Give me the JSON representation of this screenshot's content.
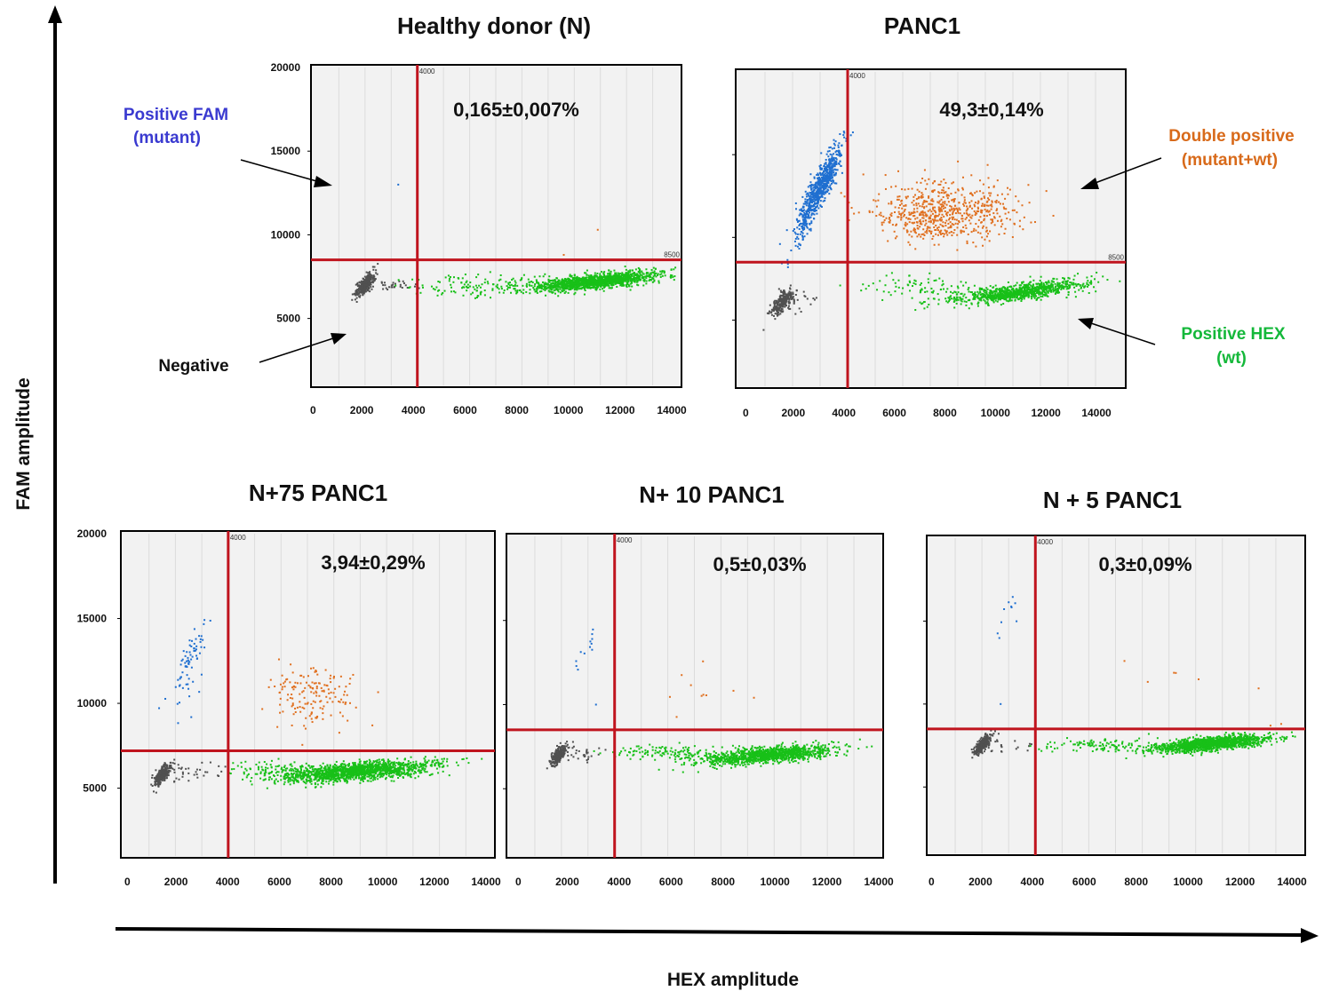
{
  "figure": {
    "x_axis_label": "HEX amplitude",
    "y_axis_label": "FAM amplitude"
  },
  "annotations": {
    "positive_fam": [
      "Positive FAM",
      "(mutant)"
    ],
    "negative": "Negative",
    "double_positive": [
      "Double positive",
      "(mutant+wt)"
    ],
    "positive_hex": [
      "Positive HEX",
      "(wt)"
    ]
  },
  "colors": {
    "mutant_fam": "#1f6fd0",
    "double_positive": "#e07020",
    "wt_hex": "#18c018",
    "negative": "#505050",
    "threshold": "#c0141e",
    "label_fam": "#3a3ad0",
    "label_double": "#d86a1a",
    "label_hex": "#14b83a"
  },
  "chart_data": [
    {
      "type": "scatter",
      "title": "Healthy donor (N)",
      "percent": "0,165±0,007%",
      "xlabel": "HEX amplitude",
      "ylabel": "FAM amplitude",
      "xlim": [
        0,
        14000
      ],
      "ylim": [
        1000,
        20000
      ],
      "x_ticks": [
        "0",
        "2000",
        "4000",
        "6000",
        "8000",
        "10000",
        "12000",
        "14000"
      ],
      "y_ticks": [
        "5000",
        "10000",
        "15000",
        "20000"
      ],
      "thresholds": {
        "x": 4000,
        "y": 8500,
        "x_text": "4000",
        "y_text": "8500"
      },
      "clusters": [
        {
          "name": "negative",
          "n": 300,
          "cx": 2000,
          "cy": 7000,
          "sx": 180,
          "sy": 350,
          "corr": 0.7
        },
        {
          "name": "negative",
          "n": 30,
          "cx": 3200,
          "cy": 7000,
          "sx": 550,
          "sy": 180,
          "corr": 0
        },
        {
          "name": "wt",
          "n": 150,
          "cx": 6500,
          "cy": 7000,
          "sx": 1600,
          "sy": 300,
          "corr": 0
        },
        {
          "name": "wt",
          "n": 1400,
          "cx": 10800,
          "cy": 7200,
          "sx": 1200,
          "sy": 280,
          "corr": 0.65
        }
      ],
      "points": [
        {
          "name": "mutant",
          "x": 3270,
          "y": 13000
        },
        {
          "name": "double",
          "x": 10900,
          "y": 10300
        },
        {
          "name": "double",
          "x": 9600,
          "y": 8800
        }
      ]
    },
    {
      "type": "scatter",
      "title": "PANC1",
      "percent": "49,3±0,14%",
      "xlabel": "HEX amplitude",
      "ylabel": "FAM amplitude",
      "xlim": [
        0,
        14000
      ],
      "ylim": [
        1000,
        20000
      ],
      "x_ticks": [
        "0",
        "2000",
        "4000",
        "6000",
        "8000",
        "10000",
        "12000",
        "14000"
      ],
      "y_ticks": [],
      "thresholds": {
        "x": 4000,
        "y": 8500,
        "x_text": "4000",
        "y_text": "8500"
      },
      "clusters": [
        {
          "name": "negative",
          "n": 260,
          "cx": 1600,
          "cy": 6000,
          "sx": 200,
          "sy": 380,
          "corr": 0.7
        },
        {
          "name": "negative",
          "n": 15,
          "cx": 2500,
          "cy": 6200,
          "sx": 300,
          "sy": 400,
          "corr": 0
        },
        {
          "name": "mutant",
          "n": 700,
          "cx": 3000,
          "cy": 13000,
          "sx": 420,
          "sy": 1300,
          "corr": 0.9
        },
        {
          "name": "mutant",
          "n": 40,
          "cx": 2400,
          "cy": 10500,
          "sx": 250,
          "sy": 900,
          "corr": 0.8
        },
        {
          "name": "double",
          "n": 650,
          "cx": 7500,
          "cy": 11500,
          "sx": 1300,
          "sy": 900,
          "corr": 0
        },
        {
          "name": "wt",
          "n": 900,
          "cx": 10200,
          "cy": 6700,
          "sx": 1200,
          "sy": 350,
          "corr": 0.7
        },
        {
          "name": "wt",
          "n": 80,
          "cx": 6500,
          "cy": 7000,
          "sx": 1000,
          "sy": 450,
          "corr": 0
        }
      ],
      "points": []
    },
    {
      "type": "scatter",
      "title": "N+75 PANC1",
      "percent": "3,94±0,29%",
      "xlabel": "HEX amplitude",
      "ylabel": "FAM amplitude",
      "xlim": [
        0,
        14000
      ],
      "ylim": [
        1000,
        20000
      ],
      "x_ticks": [
        "0",
        "2000",
        "4000",
        "6000",
        "8000",
        "10000",
        "12000",
        "14000"
      ],
      "y_ticks": [
        "5000",
        "10000",
        "15000",
        "20000"
      ],
      "thresholds": {
        "x": 4000,
        "y": 7200,
        "x_text": "4000",
        "y_text": ""
      },
      "clusters": [
        {
          "name": "negative",
          "n": 260,
          "cx": 1500,
          "cy": 5800,
          "sx": 150,
          "sy": 300,
          "corr": 0.7
        },
        {
          "name": "negative",
          "n": 40,
          "cx": 2500,
          "cy": 6000,
          "sx": 600,
          "sy": 300,
          "corr": 0
        },
        {
          "name": "mutant",
          "n": 60,
          "cx": 2600,
          "cy": 12800,
          "sx": 300,
          "sy": 1000,
          "corr": 0.85
        },
        {
          "name": "mutant",
          "n": 15,
          "cx": 2400,
          "cy": 10500,
          "sx": 400,
          "sy": 1000,
          "corr": 0
        },
        {
          "name": "double",
          "n": 160,
          "cx": 7200,
          "cy": 10500,
          "sx": 800,
          "sy": 900,
          "corr": 0
        },
        {
          "name": "wt",
          "n": 1500,
          "cx": 9000,
          "cy": 6000,
          "sx": 1400,
          "sy": 300,
          "corr": 0.55
        },
        {
          "name": "wt",
          "n": 120,
          "cx": 6000,
          "cy": 6000,
          "sx": 1100,
          "sy": 250,
          "corr": 0
        }
      ],
      "points": []
    },
    {
      "type": "scatter",
      "title": "N+ 10 PANC1",
      "percent": "0,5±0,03%",
      "xlabel": "HEX amplitude",
      "ylabel": "FAM amplitude",
      "xlim": [
        0,
        14000
      ],
      "ylim": [
        1000,
        20000
      ],
      "x_ticks": [
        "0",
        "2000",
        "4000",
        "6000",
        "8000",
        "10000",
        "12000",
        "14000"
      ],
      "y_ticks": [],
      "thresholds": {
        "x": 4000,
        "y": 8500,
        "x_text": "4000",
        "y_text": ""
      },
      "clusters": [
        {
          "name": "negative",
          "n": 260,
          "cx": 1900,
          "cy": 7000,
          "sx": 160,
          "sy": 300,
          "corr": 0.7
        },
        {
          "name": "negative",
          "n": 30,
          "cx": 2800,
          "cy": 7000,
          "sx": 500,
          "sy": 200,
          "corr": 0
        },
        {
          "name": "mutant",
          "n": 12,
          "cx": 3000,
          "cy": 13500,
          "sx": 250,
          "sy": 700,
          "corr": 0.7
        },
        {
          "name": "double",
          "n": 10,
          "cx": 7500,
          "cy": 11000,
          "sx": 1000,
          "sy": 800,
          "corr": 0
        },
        {
          "name": "wt",
          "n": 1200,
          "cx": 9800,
          "cy": 7000,
          "sx": 1200,
          "sy": 280,
          "corr": 0.6
        },
        {
          "name": "wt",
          "n": 150,
          "cx": 6200,
          "cy": 7100,
          "sx": 1200,
          "sy": 250,
          "corr": 0
        }
      ],
      "points": [
        {
          "name": "mutant",
          "x": 3300,
          "y": 10000
        }
      ]
    },
    {
      "type": "scatter",
      "title": "N + 5 PANC1",
      "percent": "0,3±0,09%",
      "xlabel": "HEX amplitude",
      "ylabel": "FAM amplitude",
      "xlim": [
        0,
        14000
      ],
      "ylim": [
        1000,
        20000
      ],
      "x_ticks": [
        "0",
        "2000",
        "4000",
        "6000",
        "8000",
        "10000",
        "12000",
        "14000"
      ],
      "y_ticks": [],
      "thresholds": {
        "x": 4000,
        "y": 8500,
        "x_text": "4000",
        "y_text": ""
      },
      "clusters": [
        {
          "name": "negative",
          "n": 240,
          "cx": 2000,
          "cy": 7500,
          "sx": 160,
          "sy": 300,
          "corr": 0.7
        },
        {
          "name": "negative",
          "n": 20,
          "cx": 2900,
          "cy": 7500,
          "sx": 450,
          "sy": 200,
          "corr": 0
        },
        {
          "name": "mutant",
          "n": 10,
          "cx": 3100,
          "cy": 16000,
          "sx": 300,
          "sy": 1200,
          "corr": 0.5
        },
        {
          "name": "double",
          "n": 6,
          "cx": 9500,
          "cy": 12000,
          "sx": 1500,
          "sy": 700,
          "corr": 0
        },
        {
          "name": "wt",
          "n": 1300,
          "cx": 10600,
          "cy": 7600,
          "sx": 1000,
          "sy": 250,
          "corr": 0.6
        },
        {
          "name": "wt",
          "n": 120,
          "cx": 6500,
          "cy": 7500,
          "sx": 1200,
          "sy": 200,
          "corr": 0
        }
      ],
      "points": [
        {
          "name": "mutant",
          "x": 2700,
          "y": 10000
        },
        {
          "name": "double",
          "x": 13200,
          "y": 8800
        },
        {
          "name": "double",
          "x": 12800,
          "y": 8700
        }
      ]
    }
  ]
}
